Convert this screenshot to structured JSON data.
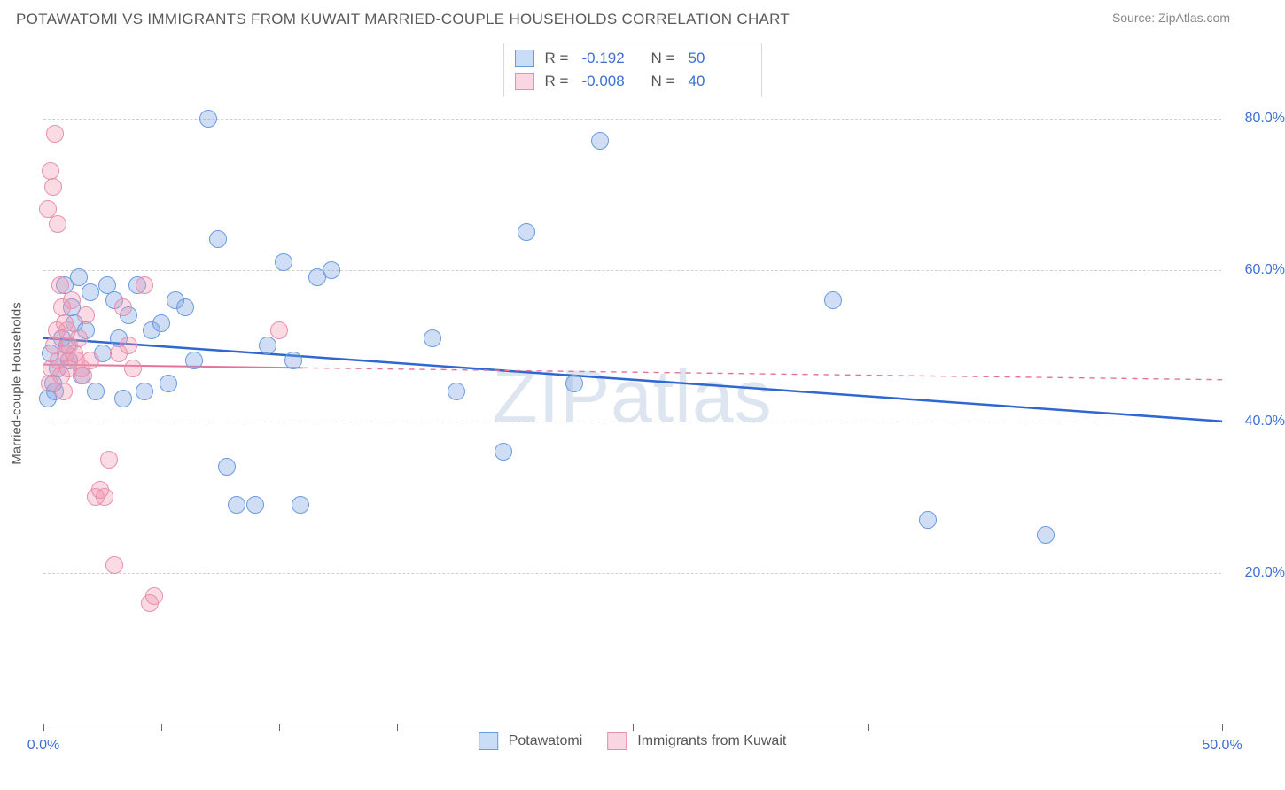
{
  "header": {
    "title": "POTAWATOMI VS IMMIGRANTS FROM KUWAIT MARRIED-COUPLE HOUSEHOLDS CORRELATION CHART",
    "source": "Source: ZipAtlas.com"
  },
  "watermark": "ZIPatlas",
  "chart": {
    "type": "scatter",
    "ylabel": "Married-couple Households",
    "background_color": "#ffffff",
    "grid_color": "#d0d0d0",
    "axis_color": "#666666",
    "tick_label_color": "#3b6fd4",
    "tick_fontsize": 16,
    "ylabel_fontsize": 15,
    "xlim": [
      0,
      50
    ],
    "ylim": [
      0,
      90
    ],
    "yticks": [
      20,
      40,
      60,
      80
    ],
    "ytick_labels": [
      "20.0%",
      "40.0%",
      "60.0%",
      "80.0%"
    ],
    "xticks": [
      0,
      5,
      10,
      15,
      25,
      35,
      50
    ],
    "xtick_labels": {
      "0": "0.0%",
      "50": "50.0%"
    },
    "marker_radius": 10,
    "marker_stroke_width": 1.5,
    "series": [
      {
        "name": "Potawatomi",
        "fill_color": "rgba(120,160,225,0.35)",
        "stroke_color": "#6a9be0",
        "swatch_fill": "#c9ddf6",
        "swatch_border": "#6a9be0",
        "R": "-0.192",
        "N": "50",
        "trend": {
          "x1": 0,
          "y1": 51,
          "x2": 50,
          "y2": 40,
          "solid_until_x": 50,
          "color": "#2f67d0",
          "width": 2.5
        },
        "points": [
          [
            0.3,
            49
          ],
          [
            0.4,
            45
          ],
          [
            0.5,
            44
          ],
          [
            0.8,
            51
          ],
          [
            0.9,
            58
          ],
          [
            1.0,
            50
          ],
          [
            1.2,
            55
          ],
          [
            1.3,
            53
          ],
          [
            1.5,
            59
          ],
          [
            1.6,
            46
          ],
          [
            1.8,
            52
          ],
          [
            2.0,
            57
          ],
          [
            2.2,
            44
          ],
          [
            2.5,
            49
          ],
          [
            2.7,
            58
          ],
          [
            3.0,
            56
          ],
          [
            3.2,
            51
          ],
          [
            3.4,
            43
          ],
          [
            3.6,
            54
          ],
          [
            4.0,
            58
          ],
          [
            4.3,
            44
          ],
          [
            4.6,
            52
          ],
          [
            5.0,
            53
          ],
          [
            5.3,
            45
          ],
          [
            5.6,
            56
          ],
          [
            6.0,
            55
          ],
          [
            6.4,
            48
          ],
          [
            7.0,
            80
          ],
          [
            7.4,
            64
          ],
          [
            7.8,
            34
          ],
          [
            8.2,
            29
          ],
          [
            9.0,
            29
          ],
          [
            9.5,
            50
          ],
          [
            10.2,
            61
          ],
          [
            10.6,
            48
          ],
          [
            10.9,
            29
          ],
          [
            11.6,
            59
          ],
          [
            12.2,
            60
          ],
          [
            16.5,
            51
          ],
          [
            17.5,
            44
          ],
          [
            19.5,
            36
          ],
          [
            20.5,
            65
          ],
          [
            22.5,
            45
          ],
          [
            23.6,
            77
          ],
          [
            33.5,
            56
          ],
          [
            37.5,
            27
          ],
          [
            42.5,
            25
          ],
          [
            0.2,
            43
          ],
          [
            0.6,
            47
          ],
          [
            1.1,
            48
          ]
        ]
      },
      {
        "name": "Immigrants from Kuwait",
        "fill_color": "rgba(240,150,175,0.35)",
        "stroke_color": "#e98fae",
        "swatch_fill": "#f9d6e1",
        "swatch_border": "#e98fae",
        "R": "-0.008",
        "N": "40",
        "trend": {
          "x1": 0,
          "y1": 47.5,
          "x2": 50,
          "y2": 45.5,
          "solid_until_x": 11,
          "color": "#e57399",
          "width": 2
        },
        "points": [
          [
            0.2,
            68
          ],
          [
            0.3,
            73
          ],
          [
            0.4,
            71
          ],
          [
            0.5,
            78
          ],
          [
            0.6,
            66
          ],
          [
            0.7,
            58
          ],
          [
            0.8,
            55
          ],
          [
            0.9,
            53
          ],
          [
            1.0,
            52
          ],
          [
            1.1,
            50
          ],
          [
            1.2,
            56
          ],
          [
            1.3,
            49
          ],
          [
            1.4,
            48
          ],
          [
            1.5,
            51
          ],
          [
            1.6,
            47
          ],
          [
            1.7,
            46
          ],
          [
            1.8,
            54
          ],
          [
            2.0,
            48
          ],
          [
            2.2,
            30
          ],
          [
            2.4,
            31
          ],
          [
            2.6,
            30
          ],
          [
            2.8,
            35
          ],
          [
            3.0,
            21
          ],
          [
            3.2,
            49
          ],
          [
            3.4,
            55
          ],
          [
            3.6,
            50
          ],
          [
            4.3,
            58
          ],
          [
            4.5,
            16
          ],
          [
            4.7,
            17
          ],
          [
            3.8,
            47
          ],
          [
            0.25,
            45
          ],
          [
            0.35,
            47
          ],
          [
            0.45,
            50
          ],
          [
            0.55,
            52
          ],
          [
            0.65,
            48
          ],
          [
            0.75,
            46
          ],
          [
            0.85,
            44
          ],
          [
            0.95,
            49
          ],
          [
            1.05,
            47
          ],
          [
            10.0,
            52
          ]
        ]
      }
    ],
    "legend_top": {
      "R_label": "R =",
      "N_label": "N ="
    },
    "legend_bottom": [
      {
        "label": "Potawatomi",
        "series_index": 0
      },
      {
        "label": "Immigrants from Kuwait",
        "series_index": 1
      }
    ]
  }
}
